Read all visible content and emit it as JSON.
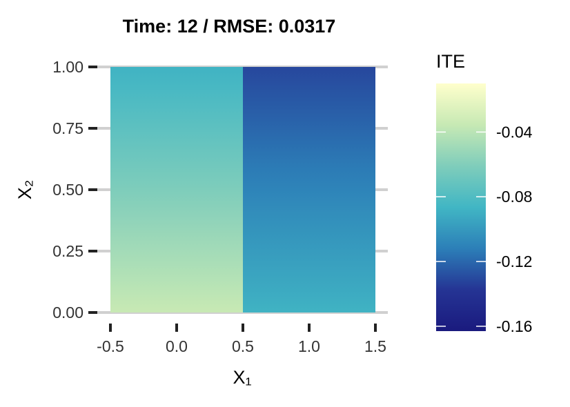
{
  "chart_data": {
    "type": "heatmap",
    "title": "Time: 12 / RMSE: 0.0317",
    "xlabel": "X₁",
    "ylabel": "X₂",
    "xlim": [
      -0.5,
      1.5
    ],
    "ylim": [
      0,
      1
    ],
    "x_ticks": [
      "-0.5",
      "0.0",
      "0.5",
      "1.0",
      "1.5"
    ],
    "y_ticks": [
      "0.00",
      "0.25",
      "0.50",
      "0.75",
      "1.00"
    ],
    "grid": true,
    "cells": [
      {
        "x_range": [
          -0.5,
          0.5
        ],
        "ite_at_y0": -0.035,
        "ite_at_y1": -0.088
      },
      {
        "x_range": [
          0.5,
          1.5
        ],
        "ite_at_y0": -0.088,
        "ite_at_y1": -0.131
      }
    ],
    "legend": {
      "title": "ITE",
      "placement": "right",
      "range": [
        -0.163,
        -0.01
      ],
      "ticks": [
        -0.04,
        -0.08,
        -0.12,
        -0.16
      ],
      "tick_labels": [
        "-0.04",
        "-0.08",
        "-0.12",
        "-0.16"
      ],
      "colormap": [
        "#ffffcc",
        "#c7e9b4",
        "#7fcdbb",
        "#41b6c4",
        "#2c7fb8",
        "#253494",
        "#1a1a7e"
      ]
    }
  }
}
